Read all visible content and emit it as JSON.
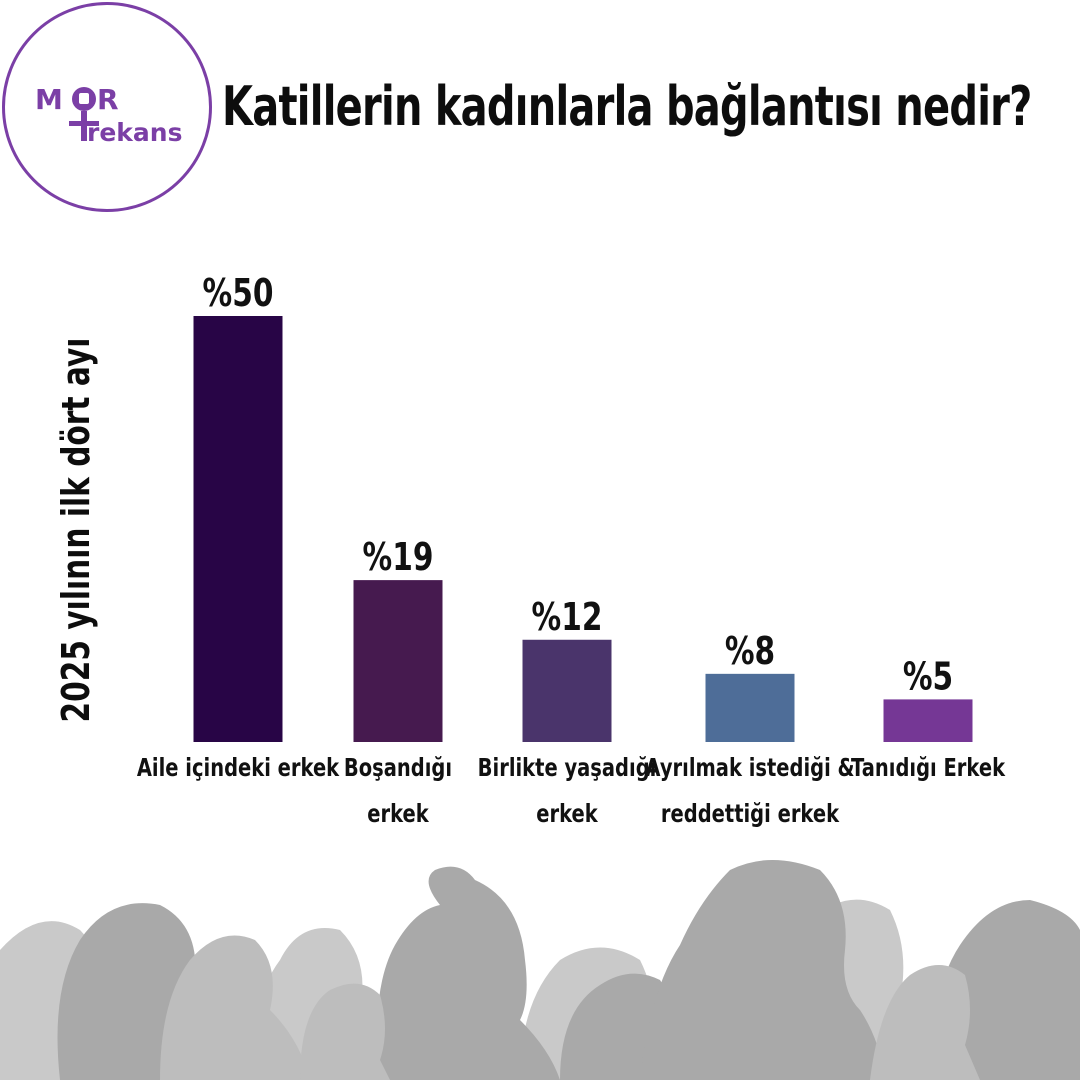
{
  "logo": {
    "text_top": "MOR",
    "text_bottom": "Frekans",
    "accent": "#7b3fa6"
  },
  "title": "Katillerin kadınlarla bağlantısı nedir?",
  "chart_data": {
    "type": "bar",
    "title": "Katillerin kadınlarla bağlantısı nedir?",
    "ylabel": "2025 yılının ilk dört ayı",
    "xlabel": "",
    "categories": [
      [
        "Aile içindeki erkek"
      ],
      [
        "Boşandığı",
        "erkek"
      ],
      [
        "Birlikte yaşadığı",
        "erkek"
      ],
      [
        "Ayrılmak istediği &",
        "reddettiği erkek"
      ],
      [
        "Tanıdığı Erkek"
      ]
    ],
    "values": [
      50,
      19,
      12,
      8,
      5
    ],
    "value_labels": [
      "%50",
      "%19",
      "%12",
      "%8",
      "%5"
    ],
    "colors": [
      "#280546",
      "#461a4f",
      "#4a346b",
      "#4e6d98",
      "#753795"
    ],
    "ylim": [
      0,
      50
    ],
    "grid": false,
    "legend": "none"
  }
}
